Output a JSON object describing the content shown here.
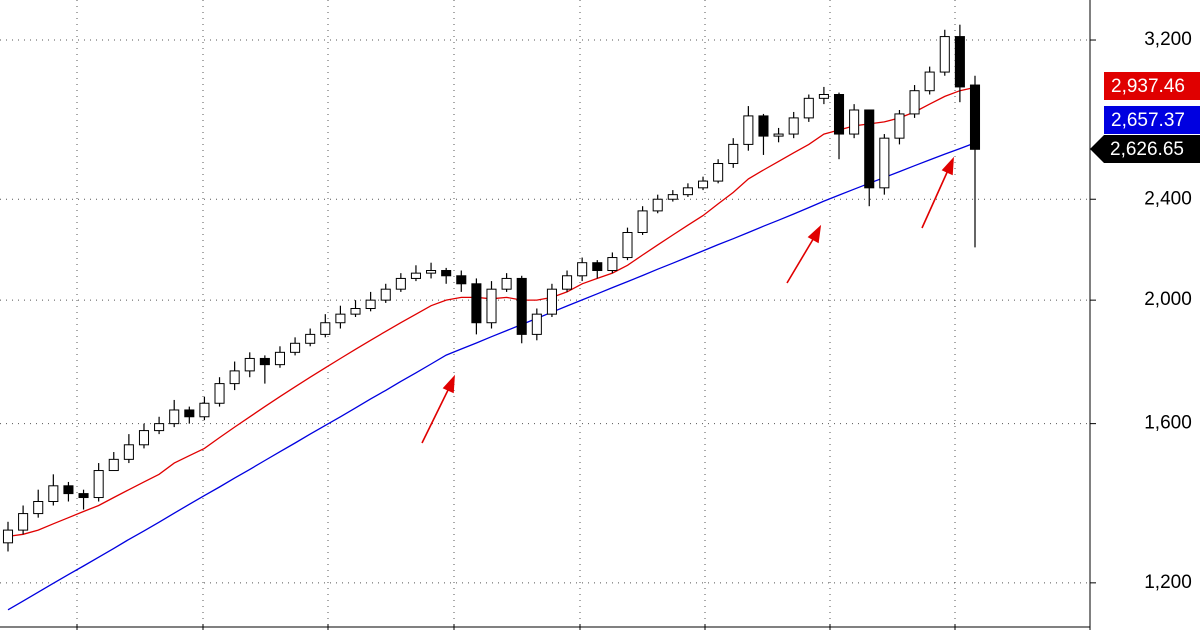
{
  "chart_data": {
    "type": "candlestick",
    "log_scale": true,
    "grid": true,
    "ylim": [
      1102,
      3440
    ],
    "yticks": [
      {
        "value": 1200,
        "label": "1,200"
      },
      {
        "value": 1600,
        "label": "1,600"
      },
      {
        "value": 2000,
        "label": "2,000"
      },
      {
        "value": 2400,
        "label": "2,400"
      },
      {
        "value": 3200,
        "label": "3,200"
      }
    ],
    "open": [
      1290,
      1320,
      1360,
      1390,
      1430,
      1410,
      1400,
      1470,
      1500,
      1540,
      1580,
      1600,
      1640,
      1620,
      1660,
      1720,
      1760,
      1800,
      1780,
      1820,
      1850,
      1880,
      1920,
      1950,
      1970,
      2000,
      2040,
      2080,
      2100,
      2110,
      2090,
      2060,
      1920,
      2040,
      2080,
      1880,
      1950,
      2040,
      2090,
      2140,
      2110,
      2160,
      2260,
      2350,
      2400,
      2420,
      2450,
      2480,
      2560,
      2650,
      2790,
      2690,
      2700,
      2780,
      2880,
      2900,
      2700,
      2820,
      2450,
      2680,
      2800,
      2920,
      3020,
      3220,
      2950
    ],
    "high": [
      1340,
      1380,
      1420,
      1460,
      1440,
      1420,
      1490,
      1520,
      1570,
      1600,
      1620,
      1670,
      1650,
      1680,
      1740,
      1790,
      1820,
      1810,
      1840,
      1870,
      1900,
      1950,
      1980,
      2000,
      2030,
      2060,
      2100,
      2130,
      2140,
      2120,
      2110,
      2080,
      2070,
      2100,
      2090,
      1970,
      2060,
      2110,
      2160,
      2150,
      2180,
      2280,
      2370,
      2420,
      2440,
      2470,
      2500,
      2580,
      2680,
      2840,
      2800,
      2730,
      2810,
      2900,
      2940,
      2910,
      2850,
      2820,
      2700,
      2820,
      2950,
      3050,
      3260,
      3290,
      3000
    ],
    "low": [
      1270,
      1310,
      1350,
      1380,
      1390,
      1370,
      1390,
      1480,
      1490,
      1530,
      1570,
      1590,
      1600,
      1610,
      1650,
      1700,
      1740,
      1720,
      1770,
      1810,
      1840,
      1870,
      1900,
      1940,
      1960,
      1990,
      2030,
      2070,
      2080,
      2060,
      2030,
      1880,
      1900,
      2030,
      1850,
      1860,
      1940,
      2030,
      2070,
      2080,
      2100,
      2150,
      2250,
      2340,
      2390,
      2410,
      2440,
      2470,
      2540,
      2620,
      2600,
      2660,
      2680,
      2760,
      2850,
      2580,
      2680,
      2370,
      2420,
      2650,
      2780,
      2900,
      3000,
      2860,
      2200
    ],
    "close": [
      1320,
      1360,
      1390,
      1430,
      1410,
      1400,
      1470,
      1500,
      1540,
      1580,
      1600,
      1640,
      1620,
      1660,
      1720,
      1760,
      1800,
      1780,
      1820,
      1850,
      1880,
      1920,
      1950,
      1970,
      2000,
      2040,
      2080,
      2100,
      2110,
      2090,
      2060,
      1920,
      2040,
      2080,
      1880,
      1950,
      2040,
      2090,
      2140,
      2110,
      2160,
      2260,
      2350,
      2400,
      2420,
      2450,
      2480,
      2560,
      2650,
      2790,
      2690,
      2700,
      2780,
      2880,
      2900,
      2700,
      2820,
      2450,
      2680,
      2800,
      2920,
      3020,
      3220,
      2940,
      2626.65
    ],
    "close_label": "2,626.65",
    "lines": [
      {
        "color": "#e00000",
        "last_label": "2,937.46",
        "values": [
          1305,
          1310,
          1320,
          1335,
          1350,
          1365,
          1380,
          1400,
          1420,
          1440,
          1460,
          1490,
          1510,
          1530,
          1560,
          1590,
          1620,
          1650,
          1680,
          1710,
          1740,
          1770,
          1800,
          1830,
          1860,
          1890,
          1920,
          1950,
          1980,
          2000,
          2010,
          2010,
          2005,
          2010,
          2000,
          2000,
          2010,
          2030,
          2060,
          2080,
          2100,
          2130,
          2170,
          2210,
          2250,
          2290,
          2330,
          2380,
          2430,
          2490,
          2530,
          2570,
          2610,
          2650,
          2700,
          2720,
          2740,
          2750,
          2760,
          2780,
          2810,
          2850,
          2890,
          2920,
          2937.46
        ]
      },
      {
        "color": "#0000e0",
        "last_label": "2,657.37",
        "values": [
          1143,
          1161,
          1180,
          1199,
          1218,
          1237,
          1257,
          1277,
          1298,
          1318,
          1339,
          1361,
          1383,
          1405,
          1427,
          1450,
          1473,
          1497,
          1521,
          1545,
          1570,
          1595,
          1620,
          1646,
          1673,
          1699,
          1727,
          1754,
          1782,
          1811,
          1831,
          1851,
          1872,
          1893,
          1914,
          1935,
          1957,
          1979,
          2001,
          2023,
          2046,
          2068,
          2091,
          2115,
          2138,
          2162,
          2186,
          2211,
          2235,
          2260,
          2286,
          2311,
          2337,
          2364,
          2392,
          2418,
          2444,
          2470,
          2496,
          2523,
          2550,
          2577,
          2604,
          2630,
          2657.37
        ]
      }
    ]
  }
}
